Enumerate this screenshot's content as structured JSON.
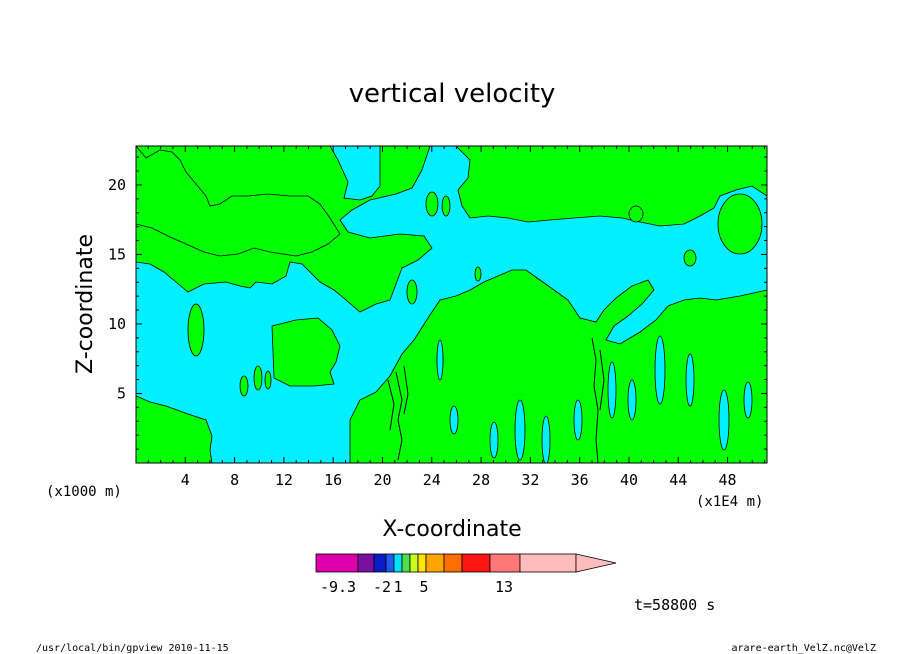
{
  "chart_data": {
    "type": "heatmap",
    "title": "vertical velocity",
    "xlabel": "X-coordinate",
    "ylabel": "Z-coordinate",
    "x_unit_left": "(x1000 m)",
    "x_unit_right": "(x1E4 m)",
    "x_ticks": [
      "4",
      "8",
      "12",
      "16",
      "20",
      "24",
      "28",
      "32",
      "36",
      "40",
      "44",
      "48"
    ],
    "x_tick_values": [
      4,
      8,
      12,
      16,
      20,
      24,
      28,
      32,
      36,
      40,
      44,
      48
    ],
    "y_ticks": [
      "5",
      "10",
      "15",
      "20"
    ],
    "y_tick_values": [
      5,
      10,
      15,
      20
    ],
    "xlim": [
      0,
      51.2
    ],
    "ylim": [
      0,
      22.8
    ],
    "colorbar": {
      "colors": [
        "#dd00aa",
        "#7a0fa0",
        "#0a1ec8",
        "#1e5cf0",
        "#00e0ff",
        "#4ce04c",
        "#c8ff1e",
        "#ffe600",
        "#ffa500",
        "#ff6e00",
        "#ff1414",
        "#ff7878",
        "#ffbcbc"
      ],
      "labels": [
        "-9.3",
        "-2",
        "1",
        "5",
        "13"
      ]
    },
    "time_label": "t=58800 s",
    "field_colors": {
      "negative": "#00f0ff",
      "positive": "#00ff00"
    }
  },
  "footer": {
    "left": "/usr/local/bin/gpview  2010-11-15",
    "right": "arare-earth_VelZ.nc@VelZ"
  }
}
